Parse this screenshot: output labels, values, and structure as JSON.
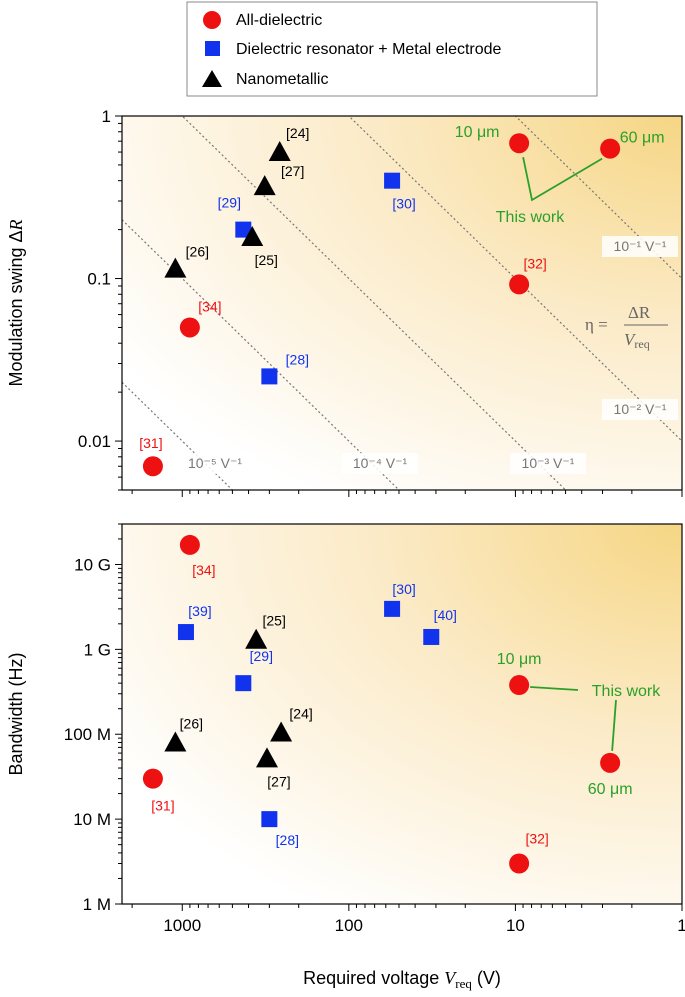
{
  "colors": {
    "all_dielectric": "#ee1111",
    "dielectric_resonator": "#1133ee",
    "nanometallic": "#000000",
    "this_work": "#2aa02a",
    "iso_label": "#777777"
  },
  "legend": {
    "items": [
      {
        "label": "All-dielectric",
        "marker": "circle",
        "color": "#ee1111"
      },
      {
        "label": "Dielectric resonator + Metal electrode",
        "marker": "square",
        "color": "#1133ee"
      },
      {
        "label": "Nanometallic",
        "marker": "triangle",
        "color": "#000000"
      }
    ]
  },
  "x_axis": {
    "title_main": "Required voltage ",
    "title_var": "V",
    "title_sub": "req",
    "title_unit": " (V)",
    "ticks": [
      {
        "v": 1000,
        "label": "1000"
      },
      {
        "v": 100,
        "label": "100"
      },
      {
        "v": 10,
        "label": "10"
      },
      {
        "v": 1,
        "label": "1"
      }
    ]
  },
  "chart_data": [
    {
      "type": "scatter",
      "panel": "top",
      "ylabel_main": "Modulation swing Δ",
      "ylabel_var": "R",
      "x_scale": "log",
      "x_reversed": true,
      "xlim": [
        2300,
        1
      ],
      "y_scale": "log",
      "ylim": [
        0.005,
        1
      ],
      "y_ticks": [
        {
          "v": 1,
          "label": "1"
        },
        {
          "v": 0.1,
          "label": "0.1"
        },
        {
          "v": 0.01,
          "label": "0.01"
        }
      ],
      "iso_lines": [
        {
          "eta": 1e-05,
          "label": "10⁻⁵ V⁻¹"
        },
        {
          "eta": 0.0001,
          "label": "10⁻⁴ V⁻¹"
        },
        {
          "eta": 0.001,
          "label": "10⁻³ V⁻¹"
        },
        {
          "eta": 0.01,
          "label": "10⁻² V⁻¹"
        },
        {
          "eta": 0.1,
          "label": "10⁻¹ V⁻¹"
        }
      ],
      "formula": {
        "lhs": "η = ",
        "num": "ΔR",
        "den_var": "V",
        "den_sub": "req"
      },
      "series": [
        {
          "name": "All-dielectric",
          "marker": "circle",
          "color": "#ee1111",
          "points": [
            {
              "x": 1500,
              "y": 0.007,
              "label": "[31]"
            },
            {
              "x": 900,
              "y": 0.05,
              "label": "[34]"
            },
            {
              "x": 9.5,
              "y": 0.092,
              "label": "[32]"
            },
            {
              "x": 9.5,
              "y": 0.68,
              "label": "10 μm"
            },
            {
              "x": 2.7,
              "y": 0.63,
              "label": "60 μm"
            }
          ]
        },
        {
          "name": "Dielectric resonator + Metal electrode",
          "marker": "square",
          "color": "#1133ee",
          "points": [
            {
              "x": 300,
              "y": 0.025,
              "label": "[28]"
            },
            {
              "x": 430,
              "y": 0.2,
              "label": "[29]"
            },
            {
              "x": 55,
              "y": 0.4,
              "label": "[30]"
            }
          ]
        },
        {
          "name": "Nanometallic",
          "marker": "triangle",
          "color": "#000000",
          "points": [
            {
              "x": 1100,
              "y": 0.115,
              "label": "[26]"
            },
            {
              "x": 380,
              "y": 0.18,
              "label": "[25]"
            },
            {
              "x": 320,
              "y": 0.37,
              "label": "[27]"
            },
            {
              "x": 260,
              "y": 0.6,
              "label": "[24]"
            }
          ]
        }
      ],
      "annotation": "This work"
    },
    {
      "type": "scatter",
      "panel": "bottom",
      "ylabel": "Bandwidth (Hz)",
      "x_scale": "log",
      "x_reversed": true,
      "xlim": [
        2300,
        1
      ],
      "y_scale": "log",
      "ylim": [
        1000000,
        30000000000
      ],
      "y_ticks": [
        {
          "v": 1000000,
          "label": "1 M"
        },
        {
          "v": 10000000,
          "label": "10 M"
        },
        {
          "v": 100000000,
          "label": "100 M"
        },
        {
          "v": 1000000000,
          "label": "1 G"
        },
        {
          "v": 10000000000,
          "label": "10 G"
        }
      ],
      "series": [
        {
          "name": "All-dielectric",
          "marker": "circle",
          "color": "#ee1111",
          "points": [
            {
              "x": 1500,
              "y": 30000000,
              "label": "[31]"
            },
            {
              "x": 900,
              "y": 17000000000,
              "label": "[34]"
            },
            {
              "x": 9.5,
              "y": 3000000,
              "label": "[32]"
            },
            {
              "x": 9.5,
              "y": 380000000,
              "label": "10 μm"
            },
            {
              "x": 2.7,
              "y": 46000000,
              "label": "60 μm"
            }
          ]
        },
        {
          "name": "Dielectric resonator + Metal electrode",
          "marker": "square",
          "color": "#1133ee",
          "points": [
            {
              "x": 300,
              "y": 10000000,
              "label": "[28]"
            },
            {
              "x": 430,
              "y": 400000000,
              "label": "[29]"
            },
            {
              "x": 55,
              "y": 3000000000,
              "label": "[30]"
            },
            {
              "x": 950,
              "y": 1600000000,
              "label": "[39]"
            },
            {
              "x": 32,
              "y": 1400000000,
              "label": "[40]"
            }
          ]
        },
        {
          "name": "Nanometallic",
          "marker": "triangle",
          "color": "#000000",
          "points": [
            {
              "x": 1100,
              "y": 80000000,
              "label": "[26]"
            },
            {
              "x": 360,
              "y": 1300000000,
              "label": "[25]"
            },
            {
              "x": 310,
              "y": 52000000,
              "label": "[27]"
            },
            {
              "x": 255,
              "y": 105000000,
              "label": "[24]"
            }
          ]
        }
      ],
      "annotation": "This work"
    }
  ]
}
